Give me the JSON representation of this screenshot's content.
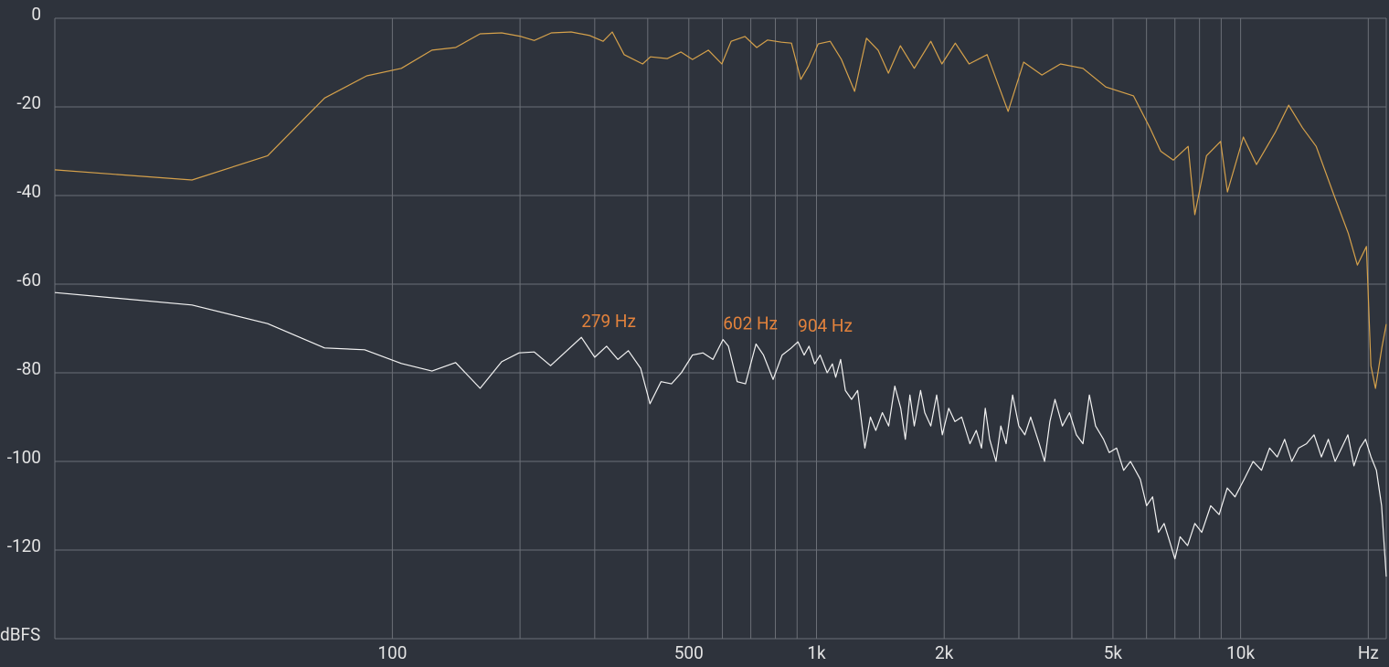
{
  "chart_data": {
    "type": "line",
    "xscale": "log",
    "xlim": [
      16,
      22050
    ],
    "ylim": [
      -140,
      0
    ],
    "xticks": [
      100,
      500,
      {
        "value": 1000,
        "label": "1k"
      },
      {
        "value": 2000,
        "label": "2k"
      },
      {
        "value": 5000,
        "label": "5k"
      },
      {
        "value": 10000,
        "label": "10k"
      },
      {
        "value": 20000,
        "label": "Hz"
      }
    ],
    "x_minor_ticks": [
      200,
      300,
      400,
      600,
      700,
      800,
      900,
      3000,
      4000,
      6000,
      7000,
      8000,
      9000
    ],
    "yticks": [
      0,
      -20,
      -40,
      -60,
      -80,
      -100,
      -120,
      {
        "value": -140,
        "label": "dBFS"
      }
    ],
    "grid": true,
    "series": [
      {
        "color": "#d5a14b",
        "x": [
          16,
          33.7,
          50.8,
          69.2,
          87,
          105,
          124,
          141,
          161,
          181,
          201,
          216,
          237,
          264,
          292,
          314,
          330,
          352,
          389,
          406,
          445,
          479,
          510,
          556,
          598,
          629,
          678,
          723,
          767,
          827,
          873,
          918,
          959,
          1009,
          1077,
          1145,
          1230,
          1312,
          1397,
          1478,
          1577,
          1700,
          1860,
          1975,
          2125,
          2290,
          2525,
          2830,
          3080,
          3400,
          3760,
          4250,
          4810,
          5590,
          6110,
          6480,
          6940,
          7520,
          7800,
          8310,
          8970,
          9310,
          10150,
          10900,
          12060,
          12980,
          13990,
          15070,
          16640,
          17940,
          18850,
          19800,
          20290,
          20800,
          21540,
          22050
        ],
        "values": [
          -34.2,
          -36.5,
          -31,
          -18,
          -13,
          -11.3,
          -7.2,
          -6.6,
          -3.5,
          -3.3,
          -4.1,
          -5,
          -3.3,
          -3.1,
          -3.9,
          -5.2,
          -3.1,
          -8.2,
          -10.3,
          -8.7,
          -9.1,
          -7.6,
          -9.3,
          -7.2,
          -10.3,
          -5.2,
          -4.1,
          -6.6,
          -4.9,
          -5.4,
          -5.6,
          -13.8,
          -10.7,
          -5.8,
          -5.2,
          -9.3,
          -16.5,
          -4.5,
          -7.2,
          -12.4,
          -6.2,
          -11.3,
          -5.2,
          -10.3,
          -5.6,
          -10.3,
          -8.2,
          -21,
          -9.9,
          -12.8,
          -10.3,
          -11.3,
          -15.5,
          -17.5,
          -24.7,
          -30,
          -32,
          -28.9,
          -44.3,
          -31,
          -27.8,
          -39.2,
          -26.8,
          -33,
          -25.8,
          -19.6,
          -24.7,
          -28.9,
          -40.2,
          -48.5,
          -55.7,
          -51.5,
          -78.4,
          -83.5,
          -74.2,
          -69
        ]
      },
      {
        "color": "#f2f2f2",
        "x": [
          16,
          33.7,
          50.8,
          69.2,
          86,
          105,
          124,
          141,
          161,
          181,
          199,
          216,
          236,
          279,
          300,
          320,
          340,
          360,
          385,
          405,
          430,
          455,
          480,
          510,
          540,
          570,
          602,
          620,
          650,
          680,
          720,
          750,
          790,
          830,
          870,
          904,
          935,
          960,
          990,
          1020,
          1060,
          1090,
          1110,
          1140,
          1170,
          1210,
          1250,
          1300,
          1340,
          1380,
          1430,
          1480,
          1530,
          1580,
          1620,
          1660,
          1700,
          1760,
          1800,
          1860,
          1920,
          1980,
          2050,
          2120,
          2200,
          2300,
          2380,
          2450,
          2500,
          2560,
          2650,
          2720,
          2800,
          2900,
          3000,
          3100,
          3200,
          3350,
          3450,
          3550,
          3650,
          3800,
          3950,
          4100,
          4250,
          4400,
          4550,
          4750,
          4900,
          5100,
          5300,
          5500,
          5800,
          6000,
          6200,
          6400,
          6600,
          6800,
          7000,
          7200,
          7500,
          7800,
          8100,
          8500,
          8900,
          9300,
          9700,
          10200,
          10700,
          11200,
          11700,
          12200,
          12700,
          13200,
          13700,
          14300,
          14900,
          15500,
          16100,
          16700,
          17300,
          17900,
          18500,
          19100,
          19700,
          20300,
          20900,
          21500,
          22050
        ],
        "values": [
          -61.9,
          -64.7,
          -68.9,
          -74.4,
          -74.8,
          -77.9,
          -79.6,
          -77.7,
          -83.5,
          -77.5,
          -75.5,
          -75.3,
          -78.4,
          -72,
          -76.5,
          -74,
          -77,
          -75,
          -79,
          -87,
          -82,
          -82.5,
          -80,
          -76,
          -75.5,
          -77,
          -72.5,
          -74,
          -82,
          -82.5,
          -73.5,
          -76,
          -81.5,
          -76,
          -74.5,
          -73,
          -76,
          -74,
          -78,
          -76,
          -80,
          -78,
          -81,
          -77,
          -84,
          -86,
          -84,
          -97,
          -90,
          -93,
          -89,
          -92,
          -83,
          -88,
          -95,
          -85,
          -92,
          -84,
          -89,
          -92,
          -85,
          -94,
          -88,
          -91,
          -90,
          -96,
          -93,
          -97,
          -88,
          -95,
          -100,
          -92,
          -96,
          -85,
          -92,
          -94,
          -90,
          -96,
          -100,
          -91,
          -86,
          -92,
          -89,
          -94,
          -96,
          -85,
          -92,
          -95,
          -98,
          -97,
          -102,
          -100,
          -104,
          -110,
          -108,
          -116,
          -114,
          -118,
          -122,
          -117,
          -119,
          -114,
          -116,
          -110,
          -112,
          -106,
          -108,
          -104,
          -100,
          -102,
          -97,
          -99,
          -95,
          -100,
          -97,
          -96,
          -94,
          -99,
          -95,
          -100,
          -97,
          -94,
          -101,
          -97,
          -95,
          -99,
          -102,
          -110,
          -126
        ]
      }
    ],
    "annotations": [
      {
        "text": "279 Hz",
        "x": 279,
        "y": -72
      },
      {
        "text": "602 Hz",
        "x": 602,
        "y": -72.5
      },
      {
        "text": "904 Hz",
        "x": 904,
        "y": -73
      }
    ],
    "annotation_color": "#e2823c"
  }
}
